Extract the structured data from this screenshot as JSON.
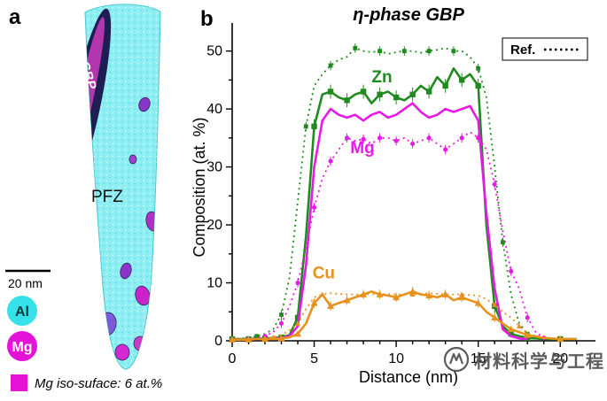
{
  "panel_a": {
    "label": "a",
    "gbp_label": "η GBP",
    "pfz_label": "PFZ",
    "scalebar_label": "20 nm",
    "legend": [
      {
        "label": "Al",
        "color": "#35e2ea",
        "text_color": "#063b3e"
      },
      {
        "label": "Mg",
        "color": "#e513d8",
        "text_color": "#ffffff"
      }
    ],
    "iso_color": "#e513d8",
    "caption": "Mg iso-suface: 6 at.%"
  },
  "panel_b": {
    "label": "b"
  },
  "watermark": {
    "text": "材料科学与工程"
  },
  "chart_data": {
    "type": "line",
    "title": "η-phase GBP",
    "xlabel": "Distance (nm)",
    "ylabel": "Composition (at. %)",
    "xlim": [
      0,
      21.5
    ],
    "ylim": [
      0,
      53
    ],
    "x_ticks": [
      0,
      5,
      10,
      15,
      20
    ],
    "y_ticks": [
      0,
      10,
      20,
      30,
      40,
      50
    ],
    "legend_label": "Ref.",
    "legend_position": "top-right",
    "grid": false,
    "series": [
      {
        "name": "Zn",
        "style": "solid",
        "color": "#1f8b1f",
        "marker": "square",
        "marker_every": 2,
        "err": 1.2,
        "x": [
          0,
          0.5,
          1,
          1.5,
          2,
          2.5,
          3,
          3.5,
          4,
          4.5,
          5,
          5.5,
          6,
          6.5,
          7,
          7.5,
          8,
          8.5,
          9,
          9.5,
          10,
          10.5,
          11,
          11.5,
          12,
          12.5,
          13,
          13.5,
          14,
          14.5,
          15,
          15.5,
          16,
          16.5,
          17,
          17.5,
          18,
          19,
          20,
          21
        ],
        "y": [
          0.3,
          0.3,
          0.3,
          0.4,
          0.4,
          0.5,
          0.6,
          1.0,
          4,
          18,
          37,
          42.5,
          43,
          42,
          41.5,
          42.5,
          43,
          41,
          42.5,
          43,
          42,
          41.5,
          42.5,
          44,
          43,
          45.5,
          44,
          47,
          45,
          46,
          44,
          20,
          6,
          2.5,
          1.2,
          0.8,
          0.5,
          0.3,
          0.3,
          0.3
        ]
      },
      {
        "name": "Zn (Ref.)",
        "style": "dotted",
        "color": "#1f8b1f",
        "marker": "square",
        "marker_every": 3,
        "err": 0.8,
        "x": [
          0,
          0.5,
          1,
          1.5,
          2,
          2.5,
          3,
          3.5,
          4,
          4.5,
          5,
          5.5,
          6,
          6.5,
          7,
          7.5,
          8,
          8.5,
          9,
          9.5,
          10,
          10.5,
          11,
          11.5,
          12,
          12.5,
          13,
          13.5,
          14,
          14.5,
          15,
          15.5,
          16,
          16.5,
          17,
          17.5,
          18,
          19,
          20
        ],
        "y": [
          0.3,
          0.4,
          0.5,
          0.8,
          1.2,
          2,
          4.5,
          11,
          24,
          37,
          44,
          46,
          47.5,
          48.5,
          49,
          50.5,
          50,
          49.8,
          50,
          49.5,
          49.8,
          50,
          50,
          49.7,
          50,
          50.2,
          50.5,
          50,
          50,
          49,
          47,
          42,
          30,
          17,
          8,
          3,
          1.2,
          0.4,
          0.3
        ]
      },
      {
        "name": "Mg",
        "style": "solid",
        "color": "#e61ae6",
        "marker": "none",
        "x": [
          0,
          0.5,
          1,
          1.5,
          2,
          2.5,
          3,
          3.5,
          4,
          4.5,
          5,
          5.5,
          6,
          6.5,
          7,
          7.5,
          8,
          8.5,
          9,
          9.5,
          10,
          10.5,
          11,
          11.5,
          12,
          12.5,
          13,
          13.5,
          14,
          14.5,
          15,
          15.5,
          16,
          16.5,
          17,
          17.5,
          18
        ],
        "y": [
          0.2,
          0.2,
          0.2,
          0.3,
          0.3,
          0.4,
          0.5,
          0.8,
          2.5,
          13,
          30,
          38,
          40,
          39,
          38.5,
          39,
          38,
          39,
          39.5,
          38.5,
          39,
          40,
          41,
          39.5,
          38.5,
          39,
          40,
          39.5,
          40,
          40.5,
          38,
          22,
          9,
          2,
          0.8,
          0.4,
          0.3
        ]
      },
      {
        "name": "Mg (Ref.)",
        "style": "dotted",
        "color": "#e61ae6",
        "marker": "circle",
        "marker_every": 2,
        "err": 0.8,
        "x": [
          0,
          0.5,
          1,
          1.5,
          2,
          2.5,
          3,
          3.5,
          4,
          4.5,
          5,
          5.5,
          6,
          6.5,
          7,
          7.5,
          8,
          8.5,
          9,
          9.5,
          10,
          10.5,
          11,
          11.5,
          12,
          12.5,
          13,
          13.5,
          14,
          14.5,
          15,
          15.5,
          16,
          16.5,
          17,
          17.5,
          18,
          18.5,
          19,
          20
        ],
        "y": [
          0.2,
          0.2,
          0.3,
          0.5,
          0.8,
          1.5,
          3,
          6,
          10,
          16,
          23,
          28,
          31,
          33,
          35,
          34.5,
          34.8,
          34,
          35,
          35,
          34.5,
          35,
          34,
          34.5,
          35,
          34,
          33,
          34,
          35,
          36,
          35,
          33,
          27,
          19,
          12,
          9,
          4,
          1.5,
          0.5,
          0.3
        ]
      },
      {
        "name": "Cu",
        "style": "solid",
        "color": "#e8921e",
        "marker": "triangle",
        "marker_every": 2,
        "err": 0.8,
        "x": [
          0,
          0.5,
          1,
          1.5,
          2,
          2.5,
          3,
          3.5,
          4,
          4.5,
          5,
          5.5,
          6,
          6.5,
          7,
          7.5,
          8,
          8.5,
          9,
          9.5,
          10,
          10.5,
          11,
          11.5,
          12,
          12.5,
          13,
          13.5,
          14,
          14.5,
          15,
          15.5,
          16,
          16.5,
          17,
          17.5,
          18,
          19,
          20,
          21
        ],
        "y": [
          0.2,
          0.2,
          0.2,
          0.3,
          0.3,
          0.3,
          0.4,
          0.6,
          1.2,
          3,
          6.5,
          8,
          6,
          6.5,
          7,
          7.5,
          8,
          8.5,
          8,
          7.8,
          7.5,
          8,
          8.5,
          8,
          7.8,
          7.5,
          8,
          7,
          7.5,
          7,
          6.5,
          5,
          4,
          3,
          2,
          1.5,
          1,
          0.5,
          0.3,
          0.3
        ]
      },
      {
        "name": "Cu (Ref.)",
        "style": "dotted",
        "color": "#e8921e",
        "marker": "triangle",
        "marker_every": 3,
        "x": [
          0,
          1,
          2,
          2.5,
          3,
          3.5,
          4,
          4.5,
          5,
          5.5,
          6,
          7,
          8,
          9,
          10,
          11,
          12,
          13,
          14,
          15,
          15.5,
          16,
          16.5,
          17,
          17.5,
          18,
          19,
          20
        ],
        "y": [
          0.2,
          0.3,
          0.4,
          0.6,
          1,
          1.8,
          3,
          5.5,
          7.5,
          8,
          8.2,
          8,
          8,
          8.1,
          8,
          8,
          8.2,
          8,
          8,
          7.8,
          7.2,
          6.2,
          5,
          4,
          2.5,
          1.2,
          0.5,
          0.3
        ]
      }
    ],
    "annotations": [
      {
        "text": "Zn",
        "x": 8.5,
        "y": 44.6,
        "color": "#1f8b1f"
      },
      {
        "text": "Mg",
        "x": 7.2,
        "y": 32.4,
        "color": "#e61ae6"
      },
      {
        "text": "Cu",
        "x": 4.9,
        "y": 10.8,
        "color": "#e8921e"
      }
    ]
  }
}
